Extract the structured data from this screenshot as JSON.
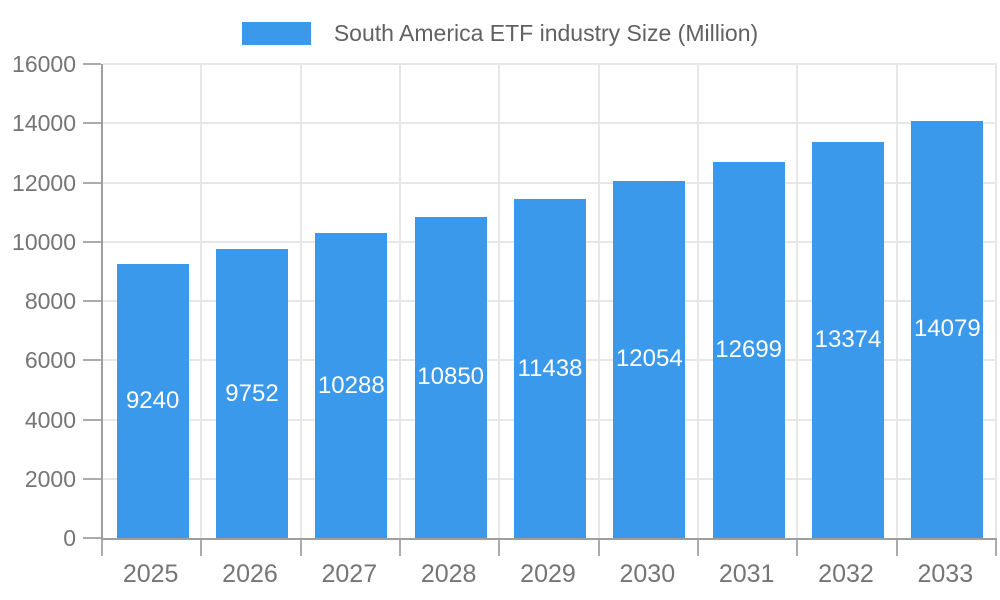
{
  "legend": {
    "label": "South America ETF industry Size (Million)"
  },
  "chart_data": {
    "type": "bar",
    "title": "South America ETF industry Size (Million)",
    "categories": [
      "2025",
      "2026",
      "2027",
      "2028",
      "2029",
      "2030",
      "2031",
      "2032",
      "2033"
    ],
    "series": [
      {
        "name": "South America ETF industry Size (Million)",
        "values": [
          9240,
          9752,
          10288,
          10850,
          11438,
          12054,
          12699,
          13374,
          14079
        ]
      }
    ],
    "value_labels": [
      "9240",
      "9752",
      "10288",
      "10850",
      "11438",
      "12054",
      "12699",
      "13374",
      "14079"
    ],
    "xlabel": "",
    "ylabel": "",
    "ylim": [
      0,
      16000
    ],
    "yticks": [
      0,
      2000,
      4000,
      6000,
      8000,
      10000,
      12000,
      14000,
      16000
    ],
    "grid": true,
    "legend_position": "top",
    "data_label_position": "inside-center",
    "colors": {
      "bar": "#3B99EC",
      "grid": "#e7e7e7",
      "axis": "#9e9e9e",
      "tick": "#ababab",
      "tick_label": "#757575",
      "legend_label": "#616161",
      "value_label": "#ffffff",
      "background": "#ffffff"
    }
  }
}
